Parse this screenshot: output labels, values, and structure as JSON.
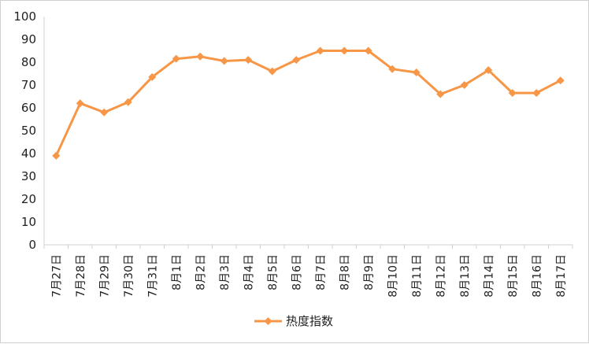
{
  "chart_data": {
    "type": "line",
    "categories": [
      "7月27日",
      "7月28日",
      "7月29日",
      "7月30日",
      "7月31日",
      "8月1日",
      "8月2日",
      "8月3日",
      "8月4日",
      "8月5日",
      "8月6日",
      "8月7日",
      "8月8日",
      "8月9日",
      "8月10日",
      "8月11日",
      "8月12日",
      "8月13日",
      "8月14日",
      "8月15日",
      "8月16日",
      "8月17日"
    ],
    "series": [
      {
        "name": "热度指数",
        "color": "#f79646",
        "marker": "diamond",
        "values": [
          39,
          62,
          58,
          62.5,
          73.5,
          81.5,
          82.5,
          80.5,
          81,
          76,
          81,
          85,
          85,
          85,
          77,
          75.5,
          66,
          70,
          76.5,
          66.5,
          66.5,
          72
        ]
      }
    ],
    "ylim": [
      0,
      100
    ],
    "yticks": [
      0,
      10,
      20,
      30,
      40,
      50,
      60,
      70,
      80,
      90,
      100
    ],
    "grid": false,
    "legend": "bottom"
  }
}
